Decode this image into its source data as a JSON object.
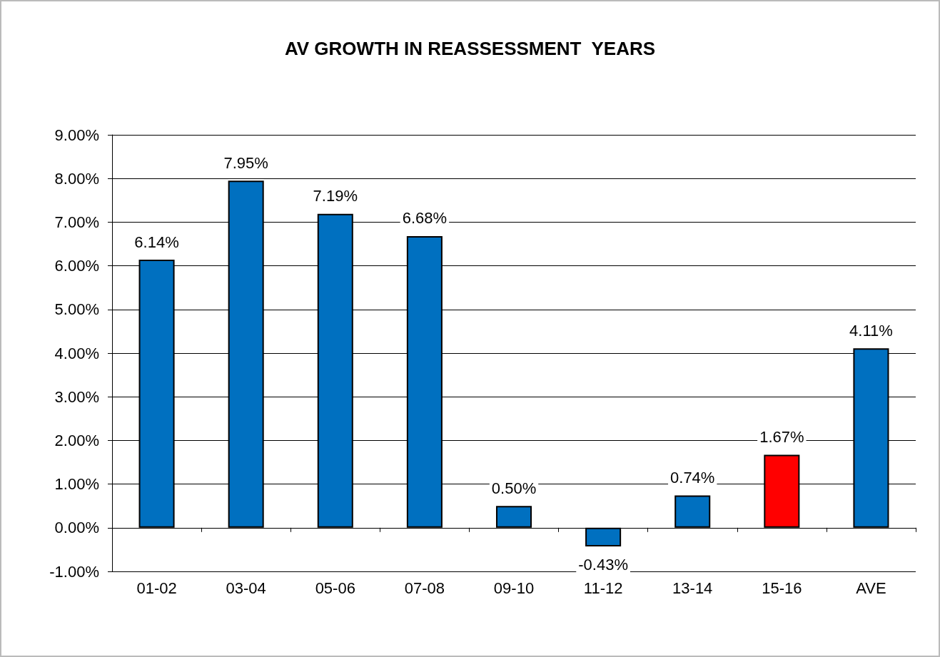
{
  "chart_data": {
    "type": "bar",
    "title": "AV GROWTH IN REASSESSMENT  YEARS",
    "categories": [
      "01-02",
      "03-04",
      "05-06",
      "07-08",
      "09-10",
      "11-12",
      "13-14",
      "15-16",
      "AVE"
    ],
    "values": [
      6.14,
      7.95,
      7.19,
      6.68,
      0.5,
      -0.43,
      0.74,
      1.67,
      4.11
    ],
    "colors": [
      "#0070c0",
      "#0070c0",
      "#0070c0",
      "#0070c0",
      "#0070c0",
      "#0070c0",
      "#0070c0",
      "#ff0000",
      "#0070c0"
    ],
    "value_labels": [
      "6.14%",
      "7.95%",
      "7.19%",
      "6.68%",
      "0.50%",
      "-0.43%",
      "0.74%",
      "1.67%",
      "4.11%"
    ],
    "ylim": [
      -1,
      9
    ],
    "yticks": [
      {
        "value": -1,
        "label": "-1.00%"
      },
      {
        "value": 0,
        "label": "0.00%"
      },
      {
        "value": 1,
        "label": "1.00%"
      },
      {
        "value": 2,
        "label": "2.00%"
      },
      {
        "value": 3,
        "label": "3.00%"
      },
      {
        "value": 4,
        "label": "4.00%"
      },
      {
        "value": 5,
        "label": "5.00%"
      },
      {
        "value": 6,
        "label": "6.00%"
      },
      {
        "value": 7,
        "label": "7.00%"
      },
      {
        "value": 8,
        "label": "8.00%"
      },
      {
        "value": 9,
        "label": "9.00%"
      }
    ],
    "grid": "y"
  }
}
